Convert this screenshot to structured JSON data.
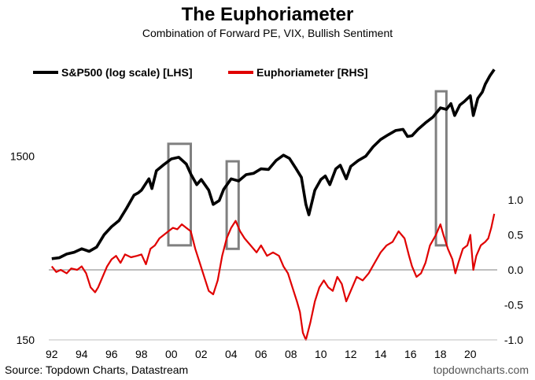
{
  "chart_data": {
    "type": "line",
    "title": "The Euphoriameter",
    "subtitle": "Combination of Forward PE, VIX, Bullish Sentiment",
    "source": "Source: Topdown Charts, Datastream",
    "credit": "topdowncharts.com",
    "x_ticks": [
      "92",
      "94",
      "96",
      "98",
      "00",
      "02",
      "04",
      "06",
      "08",
      "10",
      "12",
      "14",
      "16",
      "18",
      "20"
    ],
    "x_tick_years": [
      1992,
      1994,
      1996,
      1998,
      2000,
      2002,
      2004,
      2006,
      2008,
      2010,
      2012,
      2014,
      2016,
      2018,
      2020
    ],
    "x_range": [
      1991.8,
      2021.8
    ],
    "left_axis": {
      "label_ticks": [
        "1500",
        "150"
      ],
      "tick_values": [
        1500,
        150
      ],
      "range": [
        150,
        6000
      ],
      "scale": "log"
    },
    "right_axis": {
      "label_ticks": [
        "1.0",
        "0.5",
        "0.0",
        "-0.5",
        "-1.0"
      ],
      "tick_values": [
        1.0,
        0.5,
        0.0,
        -0.5,
        -1.0
      ],
      "range": [
        -1.0,
        1.0
      ]
    },
    "zero_line_color": "#999999",
    "series": [
      {
        "name": "S&P500 (log scale) [LHS]",
        "axis": "left",
        "color": "#000000",
        "x": [
          1992.0,
          1992.5,
          1993.0,
          1993.5,
          1994.0,
          1994.5,
          1995.0,
          1995.5,
          1996.0,
          1996.5,
          1997.0,
          1997.5,
          1997.8,
          1998.0,
          1998.5,
          1998.7,
          1999.0,
          1999.5,
          2000.0,
          2000.5,
          2001.0,
          2001.3,
          2001.7,
          2002.0,
          2002.5,
          2002.8,
          2003.2,
          2003.5,
          2004.0,
          2004.5,
          2005.0,
          2005.5,
          2006.0,
          2006.5,
          2007.0,
          2007.5,
          2007.9,
          2008.3,
          2008.7,
          2009.0,
          2009.2,
          2009.6,
          2010.0,
          2010.3,
          2010.6,
          2011.0,
          2011.3,
          2011.7,
          2012.0,
          2012.5,
          2013.0,
          2013.5,
          2014.0,
          2014.5,
          2015.0,
          2015.5,
          2015.8,
          2016.1,
          2016.5,
          2017.0,
          2017.5,
          2018.0,
          2018.4,
          2018.7,
          2018.95,
          2019.3,
          2019.6,
          2020.0,
          2020.2,
          2020.5,
          2020.8,
          2021.0,
          2021.3,
          2021.6
        ],
        "values": [
          415,
          420,
          440,
          450,
          470,
          455,
          480,
          560,
          620,
          670,
          780,
          920,
          950,
          980,
          1130,
          1000,
          1250,
          1350,
          1450,
          1480,
          1360,
          1200,
          1050,
          1120,
          980,
          820,
          860,
          990,
          1130,
          1100,
          1190,
          1210,
          1280,
          1270,
          1420,
          1520,
          1460,
          1300,
          1150,
          820,
          720,
          980,
          1120,
          1170,
          1050,
          1280,
          1340,
          1130,
          1320,
          1420,
          1500,
          1690,
          1850,
          1960,
          2070,
          2100,
          1920,
          1940,
          2100,
          2280,
          2450,
          2750,
          2700,
          2900,
          2500,
          2850,
          2980,
          3200,
          2500,
          3100,
          3350,
          3700,
          4100,
          4450
        ]
      },
      {
        "name": "Euphoriameter [RHS]",
        "axis": "right",
        "color": "#e00000",
        "x": [
          1992.0,
          1992.3,
          1992.6,
          1993.0,
          1993.3,
          1993.7,
          1994.0,
          1994.3,
          1994.6,
          1994.9,
          1995.1,
          1995.4,
          1995.7,
          1996.0,
          1996.3,
          1996.6,
          1996.9,
          1997.3,
          1997.7,
          1998.0,
          1998.3,
          1998.6,
          1998.9,
          1999.2,
          1999.5,
          1999.8,
          2000.1,
          2000.4,
          2000.7,
          2001.0,
          2001.3,
          2001.6,
          2001.9,
          2002.2,
          2002.5,
          2002.8,
          2003.1,
          2003.4,
          2003.7,
          2004.0,
          2004.3,
          2004.6,
          2004.9,
          2005.3,
          2005.7,
          2006.0,
          2006.4,
          2006.8,
          2007.2,
          2007.5,
          2007.8,
          2008.1,
          2008.4,
          2008.6,
          2008.8,
          2009.0,
          2009.3,
          2009.6,
          2009.9,
          2010.2,
          2010.5,
          2010.8,
          2011.1,
          2011.4,
          2011.7,
          2012.0,
          2012.4,
          2012.8,
          2013.2,
          2013.6,
          2014.0,
          2014.4,
          2014.8,
          2015.2,
          2015.6,
          2015.9,
          2016.1,
          2016.4,
          2016.7,
          2017.0,
          2017.3,
          2017.7,
          2018.0,
          2018.2,
          2018.5,
          2018.8,
          2019.0,
          2019.2,
          2019.5,
          2019.8,
          2020.0,
          2020.2,
          2020.4,
          2020.7,
          2021.0,
          2021.2,
          2021.4,
          2021.6
        ],
        "values": [
          0.05,
          -0.03,
          0.0,
          -0.05,
          0.02,
          0.0,
          0.05,
          -0.05,
          -0.25,
          -0.32,
          -0.25,
          -0.1,
          0.05,
          0.15,
          0.2,
          0.1,
          0.22,
          0.18,
          0.2,
          0.22,
          0.08,
          0.3,
          0.35,
          0.45,
          0.5,
          0.55,
          0.6,
          0.58,
          0.65,
          0.6,
          0.55,
          0.3,
          0.1,
          -0.1,
          -0.3,
          -0.35,
          -0.15,
          0.2,
          0.45,
          0.6,
          0.7,
          0.55,
          0.45,
          0.35,
          0.25,
          0.35,
          0.2,
          0.25,
          0.2,
          0.05,
          -0.05,
          -0.25,
          -0.45,
          -0.6,
          -0.9,
          -1.0,
          -0.75,
          -0.45,
          -0.25,
          -0.15,
          -0.25,
          -0.3,
          -0.1,
          -0.2,
          -0.45,
          -0.3,
          -0.1,
          -0.15,
          -0.05,
          0.1,
          0.25,
          0.35,
          0.4,
          0.55,
          0.45,
          0.2,
          0.05,
          -0.1,
          -0.05,
          0.1,
          0.35,
          0.5,
          0.65,
          0.5,
          0.3,
          0.15,
          -0.05,
          0.1,
          0.3,
          0.35,
          0.5,
          0.0,
          0.2,
          0.35,
          0.4,
          0.45,
          0.6,
          0.8
        ]
      }
    ],
    "highlight_boxes": [
      {
        "x": [
          1999.8,
          2001.3
        ],
        "y_right": [
          0.35,
          1.8
        ],
        "color": "#808080"
      },
      {
        "x": [
          2003.7,
          2004.5
        ],
        "y_right": [
          0.3,
          1.55
        ],
        "color": "#808080"
      },
      {
        "x": [
          2017.7,
          2018.4
        ],
        "y_right": [
          0.35,
          2.55
        ],
        "color": "#808080"
      }
    ]
  }
}
